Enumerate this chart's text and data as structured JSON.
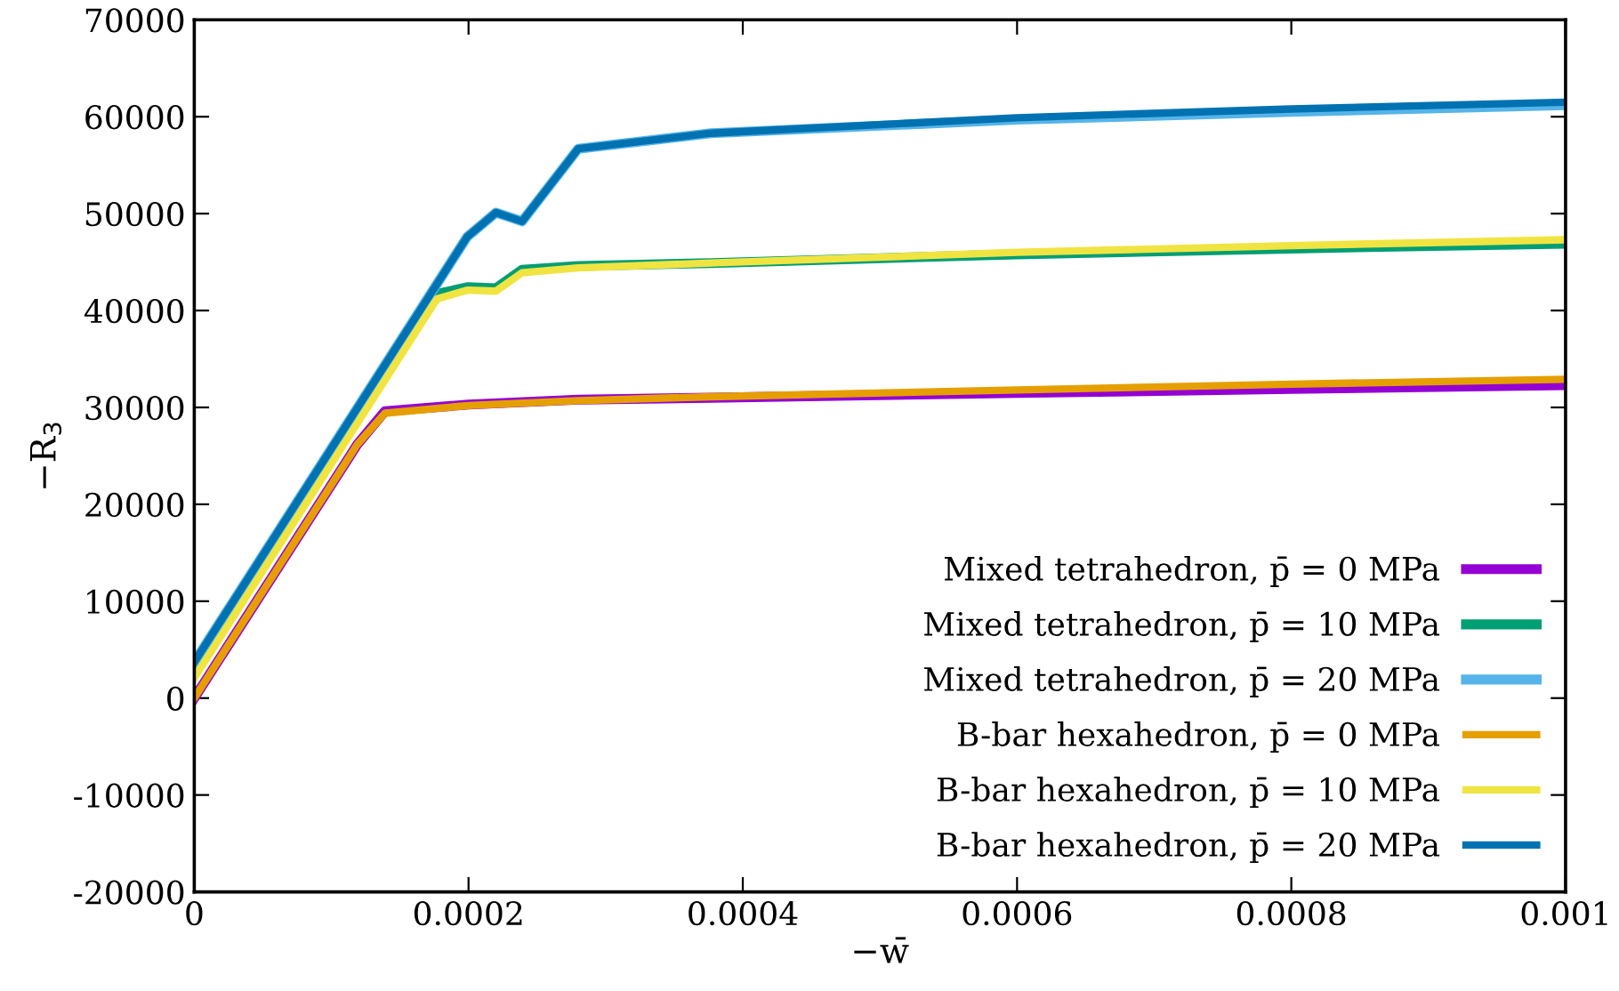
{
  "chart_data": {
    "type": "line",
    "xlabel": "−w̄",
    "ylabel": "−R$_{3}$",
    "xlim": [
      0,
      0.001
    ],
    "ylim": [
      -20000,
      70000
    ],
    "xticks": [
      0,
      0.0002,
      0.0004,
      0.0006,
      0.0008,
      0.001
    ],
    "yticks": [
      -20000,
      -10000,
      0,
      10000,
      20000,
      30000,
      40000,
      50000,
      60000,
      70000
    ],
    "grid": false,
    "legend": "bottom right",
    "marker": "none",
    "line_style": "solid",
    "series": [
      {
        "name": "Mixed tetrahedron, p̄ = 0 MPa",
        "color": "#9400d3",
        "x": [
          0,
          0.000119,
          0.000139,
          0.0002,
          0.00028,
          0.000377,
          0.0006,
          0.0008,
          0.001
        ],
        "values": [
          0,
          26200,
          29600,
          30300,
          30800,
          31000,
          31500,
          31900,
          32300
        ]
      },
      {
        "name": "Mixed tetrahedron, p̄ = 10 MPa",
        "color": "#009e73",
        "x": [
          0,
          0.000177,
          0.000199,
          0.00022,
          0.000239,
          0.00028,
          0.000377,
          0.0006,
          0.0008,
          0.001
        ],
        "values": [
          2600,
          41700,
          42400,
          42300,
          44200,
          44600,
          44900,
          45800,
          46400,
          46900
        ]
      },
      {
        "name": "Mixed tetrahedron, p̄ = 20 MPa",
        "color": "#56b4e9",
        "x": [
          0,
          0.000199,
          0.00022,
          0.000239,
          0.00028,
          0.000377,
          0.0006,
          0.0008,
          0.001
        ],
        "values": [
          3700,
          47600,
          50100,
          49200,
          56700,
          58300,
          59700,
          60500,
          61200
        ]
      },
      {
        "name": "B-bar hexahedron, p̄ = 0 MPa",
        "color": "#e69f00",
        "x": [
          0,
          0.000119,
          0.000139,
          0.0002,
          0.00028,
          0.000377,
          0.0006,
          0.0008,
          0.001
        ],
        "values": [
          0,
          26200,
          29400,
          30200,
          30700,
          31100,
          31800,
          32400,
          32900
        ]
      },
      {
        "name": "B-bar hexahedron, p̄ = 10 MPa",
        "color": "#f0e442",
        "x": [
          0,
          0.000177,
          0.000199,
          0.00022,
          0.000239,
          0.00028,
          0.000377,
          0.0006,
          0.0008,
          0.001
        ],
        "values": [
          2100,
          41200,
          42100,
          42000,
          43900,
          44400,
          44900,
          46000,
          46700,
          47300
        ]
      },
      {
        "name": "B-bar hexahedron, p̄ = 20 MPa",
        "color": "#0072b2",
        "x": [
          0,
          0.000199,
          0.00022,
          0.000239,
          0.00028,
          0.000377,
          0.0006,
          0.0008,
          0.001
        ],
        "values": [
          3700,
          47600,
          50100,
          49200,
          56700,
          58300,
          59900,
          60800,
          61500
        ]
      }
    ]
  }
}
